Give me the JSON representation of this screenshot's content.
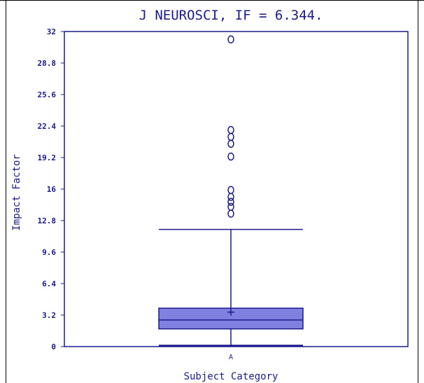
{
  "chart_data": {
    "type": "box",
    "title": "J NEUROSCI, IF = 6.344.",
    "xlabel": "Subject Category",
    "ylabel": "Impact Factor",
    "categories": [
      "A"
    ],
    "ylim": [
      0,
      32
    ],
    "yticks": [
      0,
      3.2,
      6.4,
      9.6,
      12.8,
      16,
      19.2,
      22.4,
      25.6,
      28.8,
      32
    ],
    "ytick_labels": [
      "0",
      "3.2",
      "6.4",
      "9.6",
      "12.8",
      "16",
      "19.2",
      "22.4",
      "25.6",
      "28.8",
      "32"
    ],
    "boxes": [
      {
        "category": "A",
        "whisker_low": 0.1,
        "q1": 1.8,
        "median": 2.7,
        "q3": 3.9,
        "whisker_high": 11.9,
        "mean": 3.5,
        "outliers": [
          13.5,
          14.2,
          14.7,
          15.2,
          15.9,
          19.3,
          20.6,
          21.3,
          22.0,
          31.2
        ]
      }
    ],
    "grid": false,
    "colors": {
      "axis": "#1a1a8c",
      "box_fill": "#8080e0",
      "frame": "#000000"
    }
  }
}
